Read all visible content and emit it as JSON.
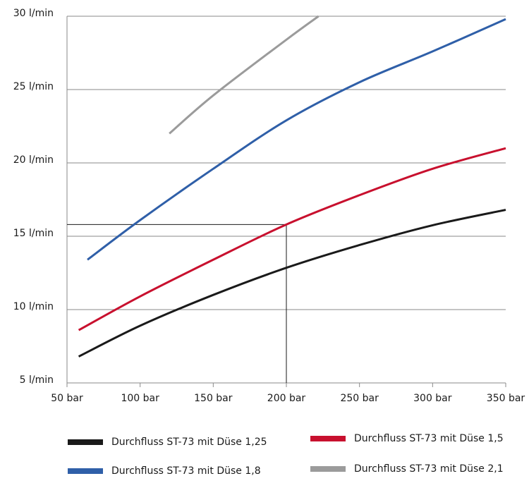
{
  "chart_data": {
    "type": "line",
    "series": [
      {
        "name": "Durchfluss ST-73 mit Düse 1,25",
        "color": "#1a1a1a",
        "x": [
          58,
          100,
          150,
          200,
          250,
          300,
          350
        ],
        "values": [
          6.8,
          8.9,
          11.0,
          12.85,
          14.4,
          15.75,
          16.8
        ]
      },
      {
        "name": "Durchfluss ST-73 mit Düse 1,5",
        "color": "#c8102e",
        "x": [
          58,
          100,
          150,
          200,
          250,
          300,
          350
        ],
        "values": [
          8.6,
          10.9,
          13.4,
          15.8,
          17.8,
          19.6,
          21.0
        ]
      },
      {
        "name": "Durchfluss ST-73 mit Düse 1,8",
        "color": "#2f5fa8",
        "x": [
          64,
          100,
          150,
          200,
          250,
          300,
          350
        ],
        "values": [
          13.4,
          16.1,
          19.6,
          22.9,
          25.5,
          27.6,
          29.8
        ]
      },
      {
        "name": "Durchfluss ST-73 mit Düse 2,1",
        "color": "#9b9b9b",
        "x": [
          120,
          150,
          200,
          222
        ],
        "values": [
          22.0,
          24.6,
          28.4,
          30.0
        ]
      }
    ],
    "reference": {
      "x": 200,
      "y": 15.8
    },
    "xlim": [
      50,
      350
    ],
    "ylim": [
      5,
      30
    ],
    "xticks": [
      {
        "value": 50,
        "label": "50 bar"
      },
      {
        "value": 100,
        "label": "100 bar"
      },
      {
        "value": 150,
        "label": "150 bar"
      },
      {
        "value": 200,
        "label": "200 bar"
      },
      {
        "value": 250,
        "label": "250 bar"
      },
      {
        "value": 300,
        "label": "300 bar"
      },
      {
        "value": 350,
        "label": "350 bar"
      }
    ],
    "yticks": [
      {
        "value": 5,
        "label": "5 l/min"
      },
      {
        "value": 10,
        "label": "10 l/min"
      },
      {
        "value": 15,
        "label": "15 l/min"
      },
      {
        "value": 20,
        "label": "20 l/min"
      },
      {
        "value": 25,
        "label": "25 l/min"
      },
      {
        "value": 30,
        "label": "30 l/min"
      }
    ],
    "grid": true
  }
}
